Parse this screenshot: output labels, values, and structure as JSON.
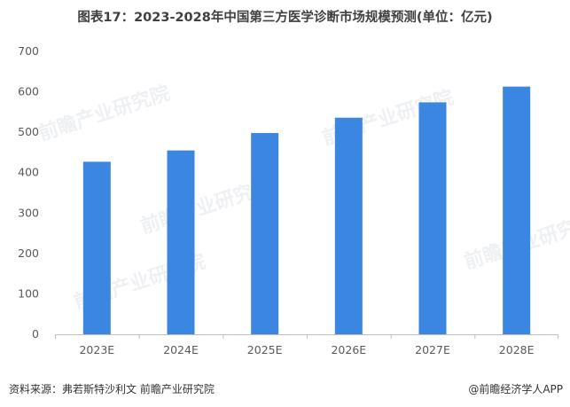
{
  "title": "图表17：2023-2028年中国第三方医学诊断市场规模预测(单位：亿元)",
  "watermark": "前瞻产业研究院",
  "footer": {
    "source": "资料来源：弗若斯特沙利文 前瞻产业研究院",
    "brand": "@前瞻经济学人APP"
  },
  "colors": {
    "bar": "#3a86e0",
    "grid": "#d9d9d9",
    "axis": "#bfbfbf"
  },
  "chart_data": {
    "type": "bar",
    "title": "图表17：2023-2028年中国第三方医学诊断市场规模预测(单位：亿元)",
    "categories": [
      "2023E",
      "2024E",
      "2025E",
      "2026E",
      "2027E",
      "2028E"
    ],
    "values": [
      427,
      455,
      498,
      536,
      574,
      613
    ],
    "xlabel": "",
    "ylabel": "",
    "ylim": [
      0,
      700
    ],
    "yticks": [
      0,
      100,
      200,
      300,
      400,
      500,
      600,
      700
    ],
    "grid": false
  }
}
